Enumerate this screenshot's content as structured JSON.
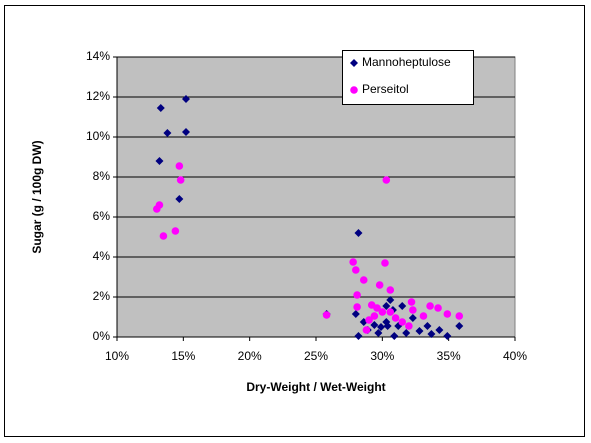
{
  "chart_data": {
    "type": "scatter",
    "xlabel": "Dry-Weight / Wet-Weight",
    "ylabel": "Sugar (g / 100g DW)",
    "xlim": [
      10,
      40
    ],
    "xticks": [
      {
        "value": 10,
        "label": "10%"
      },
      {
        "value": 15,
        "label": "15%"
      },
      {
        "value": 20,
        "label": "20%"
      },
      {
        "value": 25,
        "label": "25%"
      },
      {
        "value": 30,
        "label": "30%"
      },
      {
        "value": 35,
        "label": "35%"
      },
      {
        "value": 40,
        "label": "40%"
      }
    ],
    "ylim": [
      0,
      14
    ],
    "yticks": [
      {
        "value": 0,
        "label": "0%"
      },
      {
        "value": 2,
        "label": "2%"
      },
      {
        "value": 4,
        "label": "4%"
      },
      {
        "value": 6,
        "label": "6%"
      },
      {
        "value": 8,
        "label": "8%"
      },
      {
        "value": 10,
        "label": "10%"
      },
      {
        "value": 12,
        "label": "12%"
      },
      {
        "value": 14,
        "label": "14%"
      }
    ],
    "grid": true,
    "legend": "top-right",
    "series": [
      {
        "name": "Mannoheptulose",
        "color": "#000080",
        "marker": "diamond",
        "x": [
          13.3,
          15.2,
          13.8,
          15.2,
          13.2,
          14.7,
          25.8,
          28.2,
          28.0,
          28.2,
          28.6,
          28.9,
          29.4,
          29.9,
          30.3,
          30.3,
          30.6,
          30.8,
          30.9,
          31.2,
          31.5,
          31.8,
          32.3,
          32.8,
          33.4,
          33.7,
          34.3,
          34.9,
          35.8,
          30.4,
          29.7
        ],
        "values": [
          11.45,
          11.9,
          10.2,
          10.25,
          8.8,
          6.9,
          1.15,
          5.2,
          1.15,
          0.05,
          0.75,
          0.35,
          0.6,
          0.5,
          0.75,
          1.55,
          1.85,
          1.35,
          0.05,
          0.55,
          1.55,
          0.2,
          0.95,
          0.3,
          0.55,
          0.15,
          0.35,
          0.05,
          0.55,
          0.55,
          0.2
        ]
      },
      {
        "name": "Perseitol",
        "color": "#ff00ff",
        "marker": "circle",
        "x": [
          14.7,
          14.8,
          13.2,
          13.0,
          13.5,
          14.4,
          25.8,
          27.8,
          28.0,
          28.6,
          28.1,
          28.1,
          30.2,
          29.8,
          30.3,
          30.6,
          29.2,
          29.6,
          30.0,
          29.4,
          30.6,
          31.0,
          31.5,
          32.2,
          32.3,
          33.6,
          34.2,
          34.9,
          35.8,
          33.1,
          32.0,
          28.8,
          29.0
        ],
        "values": [
          8.55,
          7.85,
          6.6,
          6.4,
          5.05,
          5.3,
          1.1,
          3.75,
          3.35,
          2.85,
          2.1,
          1.5,
          3.7,
          2.6,
          7.85,
          2.35,
          1.6,
          1.45,
          1.25,
          1.05,
          1.25,
          0.95,
          0.75,
          1.75,
          1.35,
          1.55,
          1.45,
          1.15,
          1.05,
          1.05,
          0.55,
          0.35,
          0.85
        ]
      }
    ]
  }
}
